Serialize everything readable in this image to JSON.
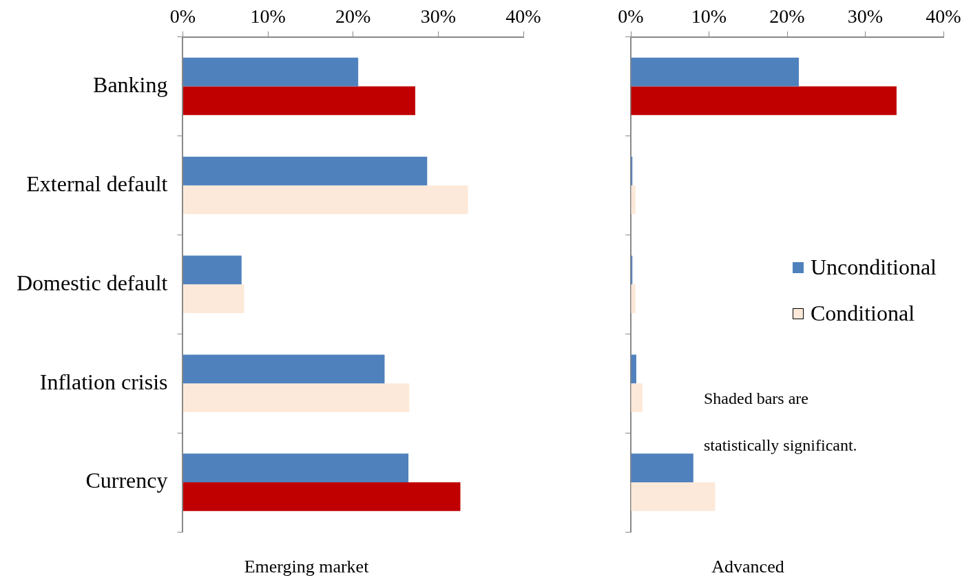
{
  "chart_data": [
    {
      "type": "bar",
      "orientation": "horizontal",
      "xlabel": "Emerging market",
      "categories": [
        "Banking",
        "External default",
        "Domestic default",
        "Inflation crisis",
        "Currency"
      ],
      "series": [
        {
          "color": "#4f81bd",
          "values": [
            20.6,
            28.7,
            6.9,
            23.7,
            26.5
          ]
        },
        {
          "colors": [
            "#c00000",
            "#fde9d9",
            "#fde9d9",
            "#fde9d9",
            "#c00000"
          ],
          "values": [
            27.3,
            33.5,
            7.2,
            26.6,
            32.6
          ]
        }
      ],
      "xlim": [
        0,
        40
      ],
      "xticks": [
        {
          "value": 0,
          "label": "0%"
        },
        {
          "value": 10,
          "label": "10%"
        },
        {
          "value": 20,
          "label": "20%"
        },
        {
          "value": 30,
          "label": "30%"
        },
        {
          "value": 40,
          "label": "40%"
        }
      ],
      "grid": false,
      "legend": false
    },
    {
      "type": "bar",
      "orientation": "horizontal",
      "xlabel": "Advanced",
      "categories": [
        null,
        null,
        null,
        null,
        null
      ],
      "series": [
        {
          "name": "Unconditional",
          "color": "#4f81bd",
          "values": [
            21.5,
            0.2,
            0.2,
            0.7,
            8.0
          ]
        },
        {
          "name": "Conditional",
          "color": "#fde9d9",
          "colors": [
            "#c00000",
            "#fde9d9",
            "#fde9d9",
            "#fde9d9",
            "#fde9d9"
          ],
          "values": [
            34.0,
            0.6,
            0.6,
            1.5,
            10.8
          ]
        }
      ],
      "xlim": [
        0,
        40
      ],
      "xticks": [
        {
          "value": 0,
          "label": "0%"
        },
        {
          "value": 10,
          "label": "10%"
        },
        {
          "value": 20,
          "label": "20%"
        },
        {
          "value": 30,
          "label": "30%"
        },
        {
          "value": 40,
          "label": "40%"
        }
      ],
      "grid": false,
      "legend": "right",
      "annotations": [
        "Shaded bars are statistically significant."
      ]
    }
  ]
}
